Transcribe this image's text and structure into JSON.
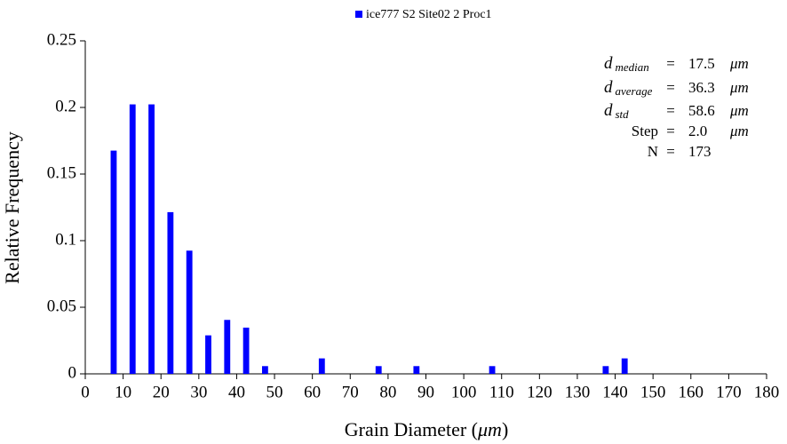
{
  "chart_data": {
    "type": "bar",
    "legend": "ice777 S2 Site02 2 Proc1",
    "x_label": [
      "Grain Diameter (",
      "μm",
      ")"
    ],
    "y_label": "Relative Frequency",
    "color": "#0000ff",
    "bar_width": 1.6,
    "x": [
      7.5,
      12.5,
      17.5,
      22.5,
      27.5,
      32.5,
      37.5,
      42.5,
      47.5,
      62.5,
      77.5,
      87.5,
      107.5,
      137.5,
      142.5
    ],
    "values": [
      0.1676,
      0.2023,
      0.2023,
      0.1214,
      0.0925,
      0.0289,
      0.0405,
      0.0347,
      0.0058,
      0.0116,
      0.0058,
      0.0058,
      0.0058,
      0.0058,
      0.0116
    ],
    "xlim": [
      0,
      180
    ],
    "xticks": [
      0,
      10,
      20,
      30,
      40,
      50,
      60,
      70,
      80,
      90,
      100,
      110,
      120,
      130,
      140,
      150,
      160,
      170,
      180
    ],
    "ylim": [
      0,
      0.25
    ],
    "yticks": [
      0,
      0.05,
      0.1,
      0.15,
      0.2,
      0.25
    ],
    "stats": [
      {
        "label": "d",
        "sub": "median",
        "eq": "=",
        "value": "17.5",
        "unit": "μm"
      },
      {
        "label": "d",
        "sub": "average",
        "eq": "=",
        "value": "36.3",
        "unit": "μm"
      },
      {
        "label": "d",
        "sub": "std",
        "eq": "=",
        "value": "58.6",
        "unit": "μm"
      },
      {
        "label": "Step",
        "eq": "=",
        "value": "2.0",
        "unit": "μm"
      },
      {
        "label": "N",
        "eq": "=",
        "value": "173"
      }
    ]
  }
}
